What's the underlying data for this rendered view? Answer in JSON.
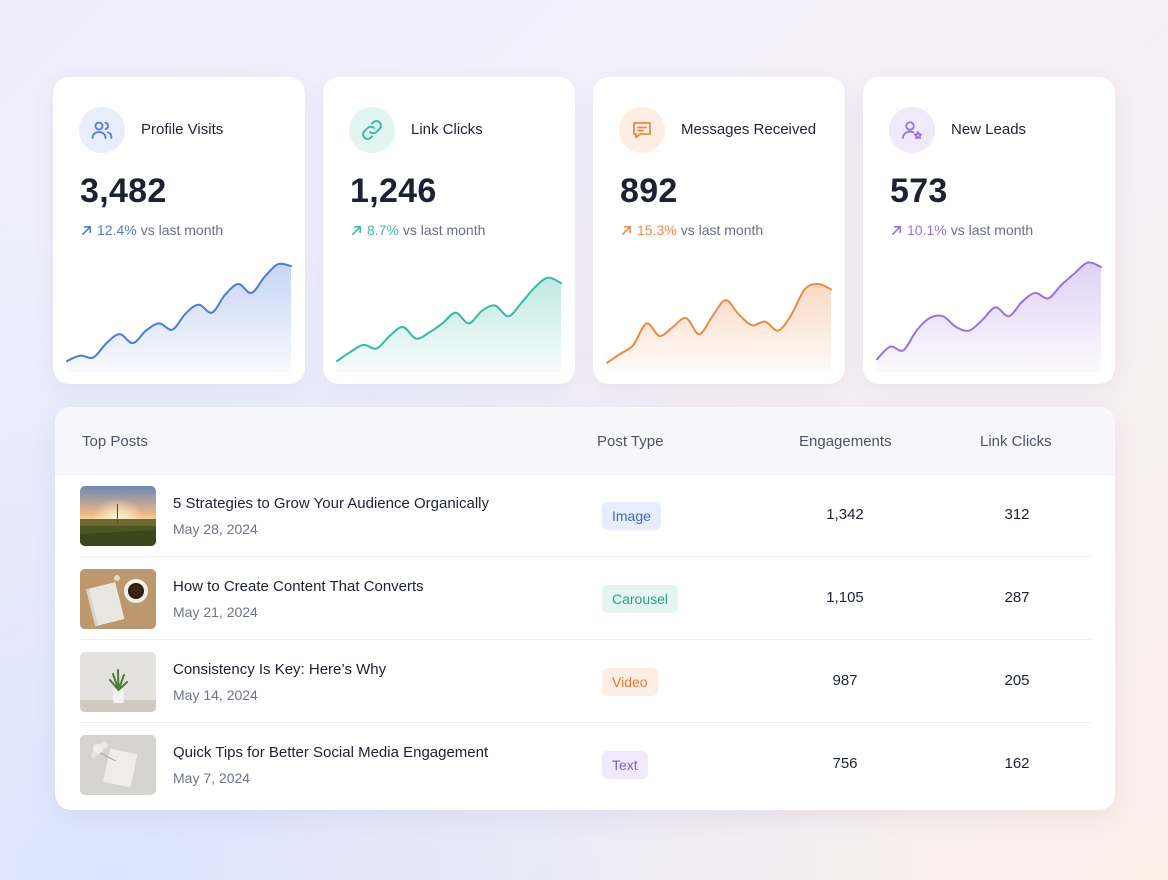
{
  "colors": {
    "blue": "#4f7ae0",
    "teal": "#3ab9a4",
    "orange": "#ef8a45",
    "purple": "#9a72e2"
  },
  "stats": [
    {
      "label": "Profile Visits",
      "value": "3,482",
      "delta": "12.4%",
      "delta_suffix": "vs last month",
      "icon": "users-icon",
      "color": "#4f7ae0",
      "trend": [
        10,
        16,
        14,
        30,
        40,
        30,
        44,
        52,
        45,
        63,
        73,
        64,
        84,
        96,
        86,
        104,
        118,
        116
      ]
    },
    {
      "label": "Link Clicks",
      "value": "1,246",
      "delta": "8.7%",
      "delta_suffix": "vs last month",
      "icon": "link-icon",
      "color": "#3ab9a4",
      "trend": [
        10,
        20,
        28,
        24,
        38,
        48,
        35,
        42,
        52,
        64,
        52,
        66,
        72,
        60,
        75,
        92,
        103,
        97
      ]
    },
    {
      "label": "Messages Received",
      "value": "892",
      "delta": "15.3%",
      "delta_suffix": "vs last month",
      "icon": "message-icon",
      "color": "#ef8a45",
      "trend": [
        8,
        18,
        28,
        52,
        38,
        48,
        58,
        40,
        60,
        78,
        62,
        50,
        54,
        44,
        62,
        90,
        96,
        90
      ]
    },
    {
      "label": "New Leads",
      "value": "573",
      "delta": "10.1%",
      "delta_suffix": "vs last month",
      "icon": "user-star-icon",
      "color": "#9a72e2",
      "trend": [
        12,
        26,
        22,
        44,
        58,
        60,
        48,
        44,
        56,
        70,
        60,
        76,
        86,
        80,
        95,
        108,
        120,
        115
      ]
    }
  ],
  "posts_table": {
    "headers": {
      "title": "Top Posts",
      "type": "Post Type",
      "engagements": "Engagements",
      "clicks": "Link Clicks"
    },
    "rows": [
      {
        "title": "5 Strategies to Grow Your Audience Organically",
        "date": "May 28, 2024",
        "type": "Image",
        "type_color": "#3e68c8",
        "type_bg": "#e6edfb",
        "engagements": "1,342",
        "clicks": "312",
        "thumb": "sunset-field"
      },
      {
        "title": "How to Create Content That Converts",
        "date": "May 21, 2024",
        "type": "Carousel",
        "type_color": "#2f9e88",
        "type_bg": "#e2f5f0",
        "engagements": "1,105",
        "clicks": "287",
        "thumb": "notebook-coffee"
      },
      {
        "title": "Consistency Is Key: Here’s Why",
        "date": "May 14, 2024",
        "type": "Video",
        "type_color": "#e07a34",
        "type_bg": "#fdeee3",
        "engagements": "987",
        "clicks": "205",
        "thumb": "plant-pot"
      },
      {
        "title": "Quick Tips for Better Social Media Engagement",
        "date": "May 7, 2024",
        "type": "Text",
        "type_color": "#7b5cc9",
        "type_bg": "#efe9fb",
        "engagements": "756",
        "clicks": "162",
        "thumb": "notepad-flowers"
      }
    ]
  }
}
